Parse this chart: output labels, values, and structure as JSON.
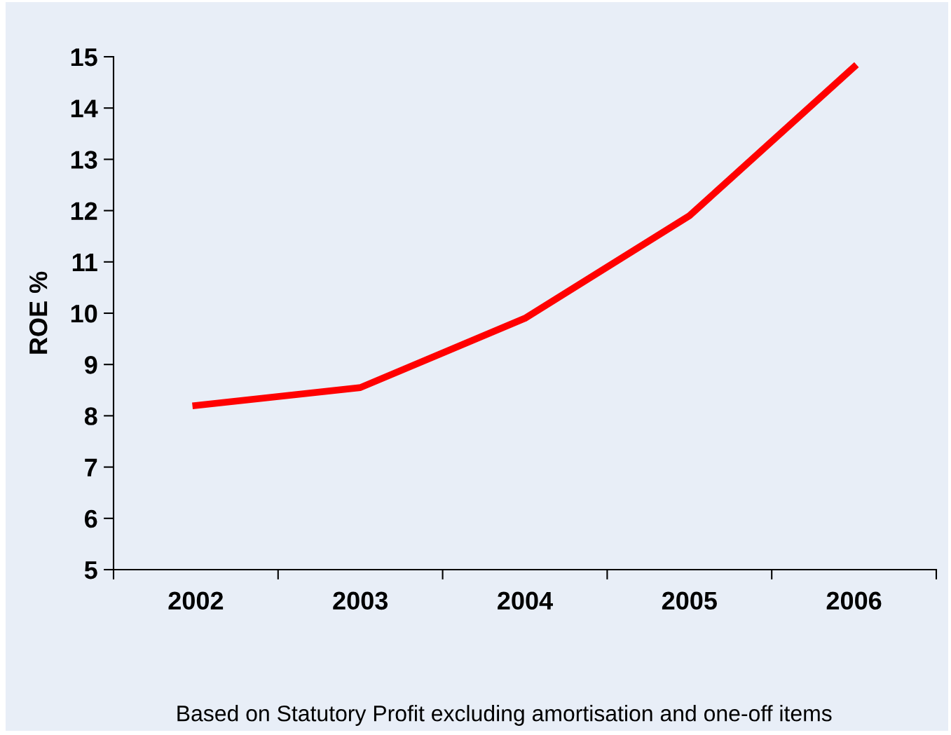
{
  "chart_data": {
    "type": "line",
    "categories": [
      "2002",
      "2003",
      "2004",
      "2005",
      "2006"
    ],
    "series": [
      {
        "color": "#ff0000",
        "values": [
          8.2,
          8.55,
          9.9,
          11.9,
          14.8
        ]
      }
    ],
    "ylabel": "ROE %",
    "ylim": [
      5,
      15
    ],
    "yticks": [
      5,
      6,
      7,
      8,
      9,
      10,
      11,
      12,
      13,
      14,
      15
    ],
    "marker": "none",
    "line_style": "solid",
    "annotations": [
      "Based on Statutory Profit excluding amortisation and one-off items"
    ]
  }
}
